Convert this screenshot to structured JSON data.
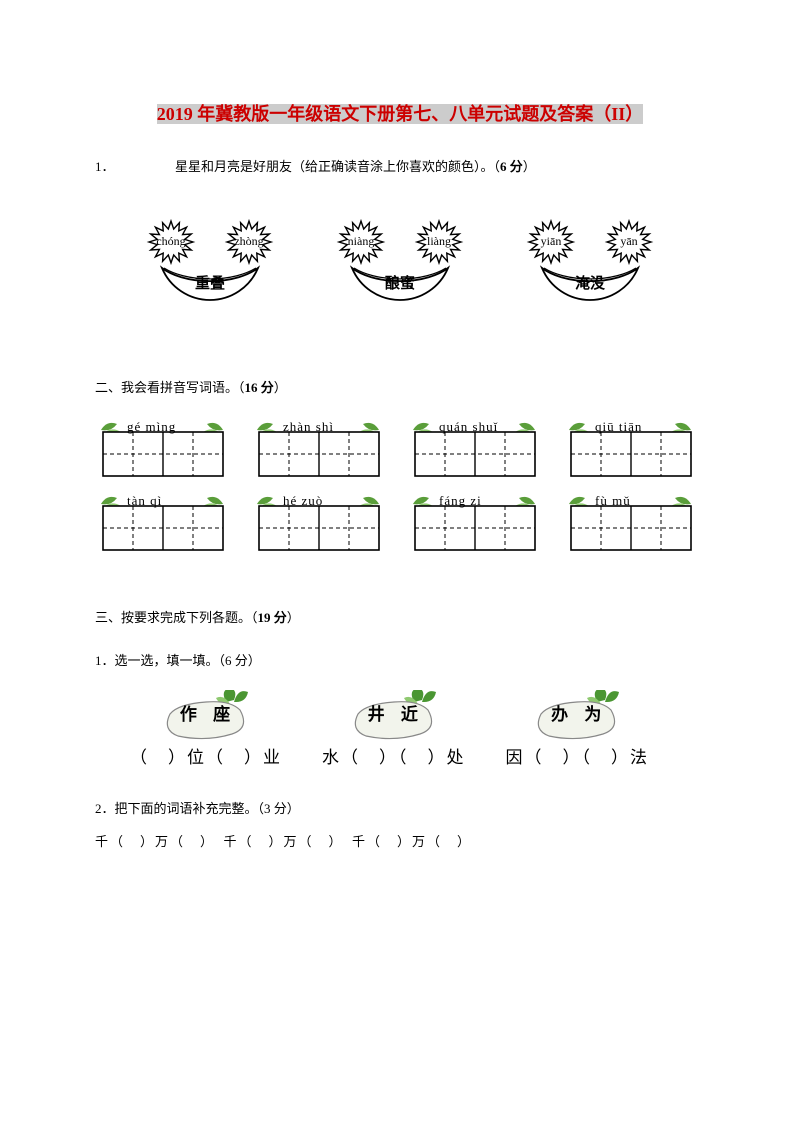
{
  "title_hl_year": "2019",
  "title_red_rest": " 年冀教版一年级语文下册第七、八单元试题及答案（II）",
  "q1_num": "1．",
  "q1_text": "星星和月亮是好朋友（给正确读音涂上你喜欢的颜色）。（",
  "q1_bold": "6 分",
  "q1_close": "）",
  "moons": [
    {
      "l": "chóng",
      "r": "zhòng",
      "label": "重叠"
    },
    {
      "l": "niàng",
      "r": "liàng",
      "label": "酿蜜"
    },
    {
      "l": "yiān",
      "r": "yān",
      "label": "淹没"
    }
  ],
  "sec2_text": "二、我会看拼音写词语。（",
  "sec2_bold": "16 分",
  "sec2_close": "）",
  "pinyin_boxes": [
    [
      "gé mìng",
      "zhàn shì",
      "quán shuǐ",
      "qiū tiān"
    ],
    [
      "tàn qì",
      "hé zuò",
      "fáng zi",
      "fù mǔ"
    ]
  ],
  "leaf_color": "#5a9e3a",
  "leaf_light": "#8fc970",
  "box_stroke": "#000000",
  "sec3_text": "三、按要求完成下列各题。（",
  "sec3_bold": "19 分",
  "sec3_close": "）",
  "sub31": "1．选一选，填一填。（6 分）",
  "radishes": [
    {
      "chars": "作 座",
      "sub": "（　）位（　）业"
    },
    {
      "chars": "井 近",
      "sub": "水（　）（　）处"
    },
    {
      "chars": "办 为",
      "sub": "因（　）（　）法"
    }
  ],
  "radish_body": "#f2f4ec",
  "radish_stroke": "#888888",
  "radish_leaf": "#4a9632",
  "sub32": "2．把下面的词语补充完整。（3 分）",
  "fill_line": "千（　）万（　）　千（　）万（　）　千（　）万（　）"
}
